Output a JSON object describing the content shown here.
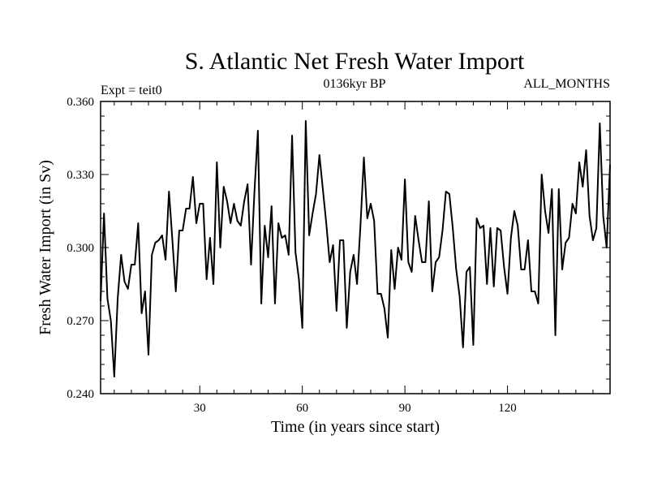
{
  "chart_data": {
    "type": "line",
    "title": "S. Atlantic Net Fresh Water Import",
    "subtitle_left": "Expt = teit0",
    "subtitle_center": "0136kyr BP",
    "subtitle_right": "ALL_MONTHS",
    "xlabel": "Time (in years since start)",
    "ylabel": "Fresh Water Import (in Sv)",
    "xlim": [
      1,
      150
    ],
    "ylim": [
      0.24,
      0.36
    ],
    "xticks": [
      30,
      60,
      90,
      120
    ],
    "xtick_labels": [
      "30",
      "60",
      "90",
      "120"
    ],
    "yticks": [
      0.24,
      0.27,
      0.3,
      0.33,
      0.36
    ],
    "ytick_labels": [
      "0.240",
      "0.270",
      "0.300",
      "0.330",
      "0.360"
    ],
    "color": "#000000",
    "series": [
      {
        "name": "Fresh Water Import",
        "x": [
          1,
          2,
          3,
          4,
          5,
          6,
          7,
          8,
          9,
          10,
          11,
          12,
          13,
          14,
          15,
          16,
          17,
          18,
          19,
          20,
          21,
          22,
          23,
          24,
          25,
          26,
          27,
          28,
          29,
          30,
          31,
          32,
          33,
          34,
          35,
          36,
          37,
          38,
          39,
          40,
          41,
          42,
          43,
          44,
          45,
          46,
          47,
          48,
          49,
          50,
          51,
          52,
          53,
          54,
          55,
          56,
          57,
          58,
          59,
          60,
          61,
          62,
          63,
          64,
          65,
          66,
          67,
          68,
          69,
          70,
          71,
          72,
          73,
          74,
          75,
          76,
          77,
          78,
          79,
          80,
          81,
          82,
          83,
          84,
          85,
          86,
          87,
          88,
          89,
          90,
          91,
          92,
          93,
          94,
          95,
          96,
          97,
          98,
          99,
          100,
          101,
          102,
          103,
          104,
          105,
          106,
          107,
          108,
          109,
          110,
          111,
          112,
          113,
          114,
          115,
          116,
          117,
          118,
          119,
          120,
          121,
          122,
          123,
          124,
          125,
          126,
          127,
          128,
          129,
          130,
          131,
          132,
          133,
          134,
          135,
          136,
          137,
          138,
          139,
          140,
          141,
          142,
          143,
          144,
          145,
          146,
          147,
          148,
          149,
          150
        ],
        "values": [
          0.278,
          0.314,
          0.279,
          0.27,
          0.247,
          0.279,
          0.297,
          0.286,
          0.283,
          0.293,
          0.293,
          0.31,
          0.273,
          0.282,
          0.256,
          0.297,
          0.302,
          0.303,
          0.305,
          0.295,
          0.323,
          0.303,
          0.282,
          0.307,
          0.307,
          0.316,
          0.316,
          0.329,
          0.31,
          0.318,
          0.318,
          0.287,
          0.304,
          0.285,
          0.335,
          0.3,
          0.325,
          0.319,
          0.31,
          0.318,
          0.311,
          0.309,
          0.319,
          0.326,
          0.293,
          0.323,
          0.348,
          0.277,
          0.309,
          0.296,
          0.317,
          0.277,
          0.31,
          0.304,
          0.305,
          0.297,
          0.346,
          0.298,
          0.287,
          0.267,
          0.352,
          0.305,
          0.314,
          0.322,
          0.338,
          0.324,
          0.31,
          0.294,
          0.301,
          0.274,
          0.303,
          0.303,
          0.267,
          0.29,
          0.297,
          0.285,
          0.309,
          0.337,
          0.312,
          0.318,
          0.311,
          0.281,
          0.281,
          0.275,
          0.263,
          0.299,
          0.283,
          0.3,
          0.295,
          0.328,
          0.294,
          0.29,
          0.313,
          0.303,
          0.294,
          0.294,
          0.319,
          0.282,
          0.294,
          0.296,
          0.307,
          0.323,
          0.322,
          0.308,
          0.291,
          0.28,
          0.259,
          0.29,
          0.292,
          0.26,
          0.312,
          0.308,
          0.309,
          0.285,
          0.308,
          0.284,
          0.308,
          0.307,
          0.292,
          0.281,
          0.304,
          0.315,
          0.309,
          0.291,
          0.291,
          0.303,
          0.282,
          0.282,
          0.277,
          0.33,
          0.315,
          0.306,
          0.324,
          0.264,
          0.324,
          0.291,
          0.302,
          0.304,
          0.318,
          0.314,
          0.335,
          0.325,
          0.34,
          0.313,
          0.303,
          0.308,
          0.351,
          0.313,
          0.3,
          0.334
        ]
      }
    ]
  }
}
